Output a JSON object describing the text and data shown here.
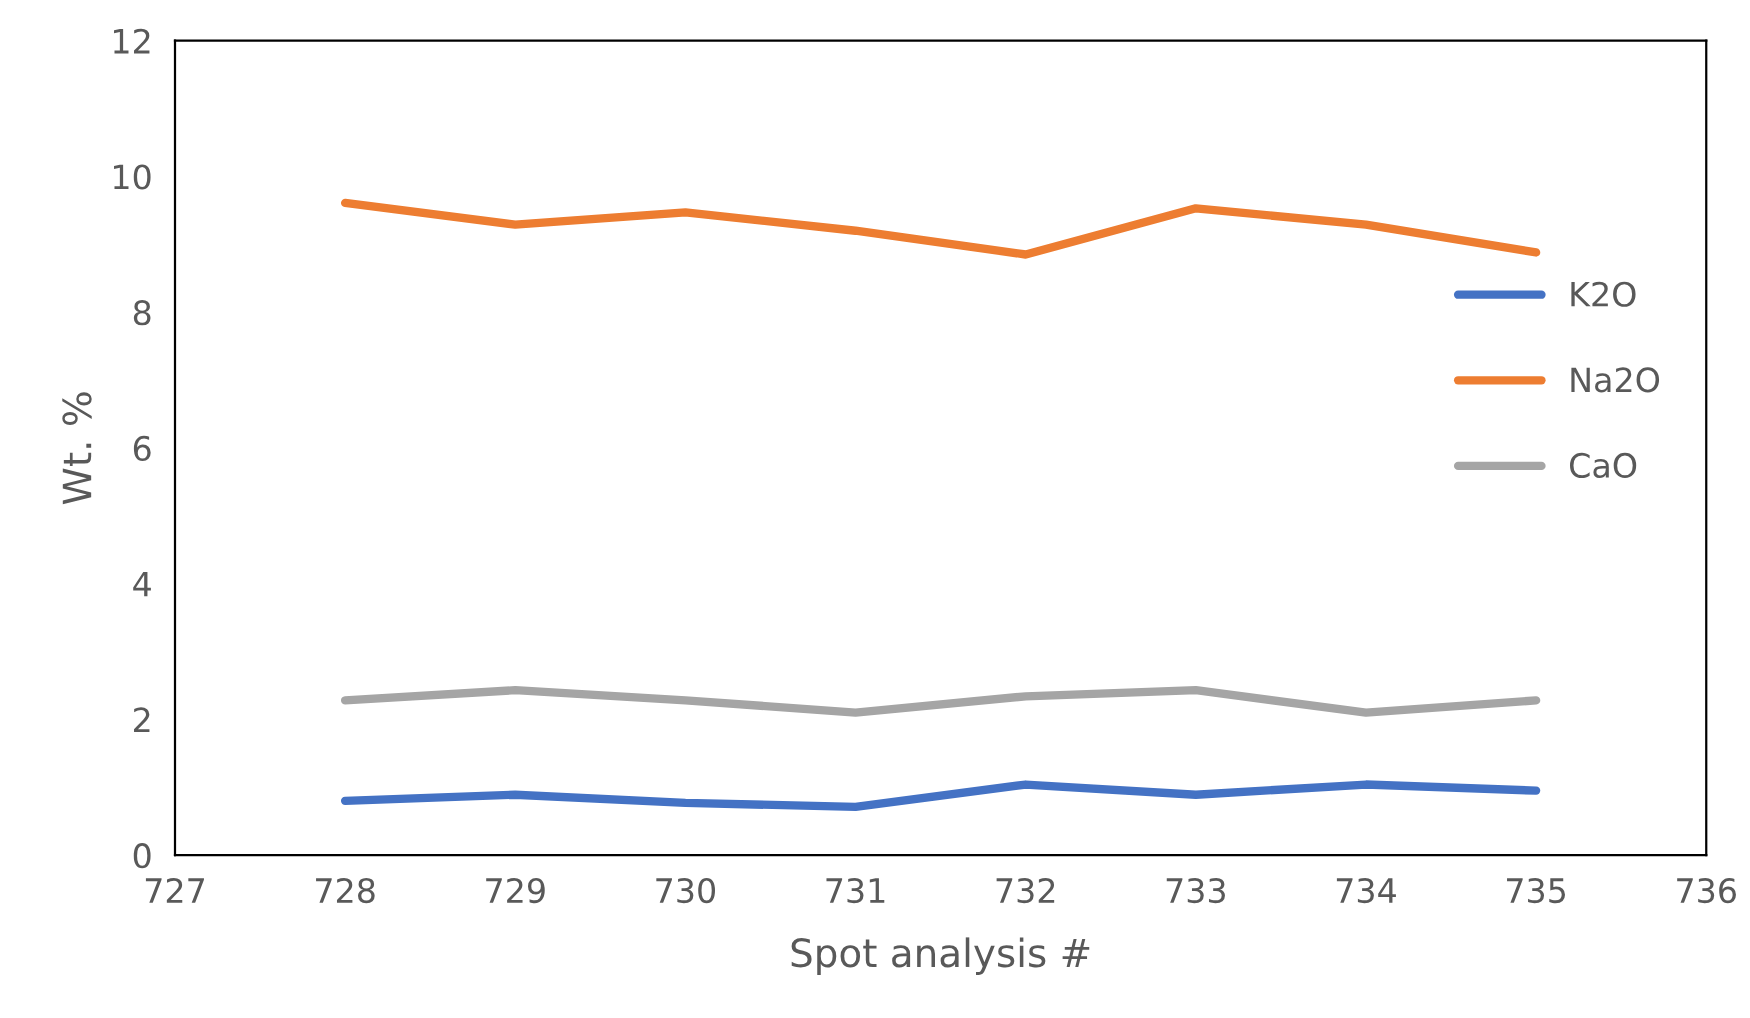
{
  "chart_data": {
    "type": "line",
    "xlabel": "Spot analysis #",
    "ylabel": "Wt. %",
    "x": [
      728,
      729,
      730,
      731,
      732,
      733,
      734,
      735
    ],
    "series": [
      {
        "name": "K2O",
        "color": "#4472c4",
        "values": [
          0.8,
          0.89,
          0.77,
          0.71,
          1.04,
          0.89,
          1.04,
          0.95
        ]
      },
      {
        "name": "Na2O",
        "color": "#ed7d31",
        "values": [
          9.61,
          9.29,
          9.47,
          9.2,
          8.85,
          9.53,
          9.29,
          8.88
        ]
      },
      {
        "name": "CaO",
        "color": "#a5a5a5",
        "values": [
          2.28,
          2.43,
          2.28,
          2.1,
          2.34,
          2.43,
          2.1,
          2.28
        ]
      }
    ],
    "xlim": [
      727,
      736
    ],
    "xticks": [
      727,
      728,
      729,
      730,
      731,
      732,
      733,
      734,
      735,
      736
    ],
    "ylim": [
      0,
      12
    ],
    "yticks": [
      0,
      2,
      4,
      6,
      8,
      10,
      12
    ],
    "grid": false,
    "legend": "right",
    "marker": "none",
    "line_style": "solid"
  }
}
